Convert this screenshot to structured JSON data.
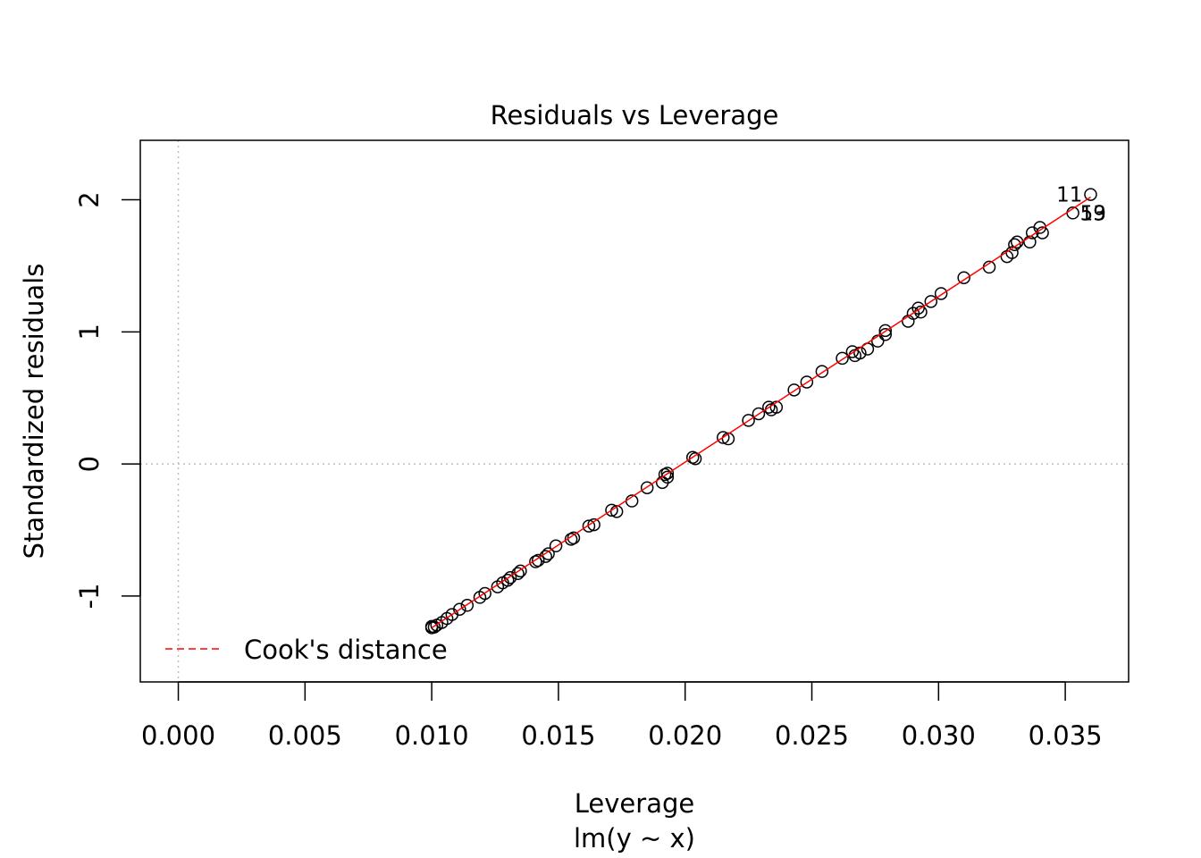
{
  "chart_data": {
    "type": "scatter",
    "title": "Residuals vs Leverage",
    "xlabel": "Leverage",
    "subtitle": "lm(y ~ x)",
    "ylabel": "Standardized residuals",
    "xlim": [
      -0.0015,
      0.0375
    ],
    "ylim": [
      -1.65,
      2.45
    ],
    "x_ticks": [
      {
        "value": 0.0,
        "label": "0.000"
      },
      {
        "value": 0.005,
        "label": "0.005"
      },
      {
        "value": 0.01,
        "label": "0.010"
      },
      {
        "value": 0.015,
        "label": "0.015"
      },
      {
        "value": 0.02,
        "label": "0.020"
      },
      {
        "value": 0.025,
        "label": "0.025"
      },
      {
        "value": 0.03,
        "label": "0.030"
      },
      {
        "value": 0.035,
        "label": "0.035"
      }
    ],
    "y_ticks": [
      {
        "value": -1,
        "label": "-1"
      },
      {
        "value": 0,
        "label": "0"
      },
      {
        "value": 1,
        "label": "1"
      },
      {
        "value": 2,
        "label": "2"
      }
    ],
    "reference_lines": {
      "x": 0,
      "y": 0,
      "color": "#bebebe"
    },
    "points": [
      [
        0.01,
        -1.24
      ],
      [
        0.01,
        -1.23
      ],
      [
        0.0101,
        -1.235
      ],
      [
        0.0102,
        -1.22
      ],
      [
        0.0104,
        -1.2
      ],
      [
        0.0106,
        -1.17
      ],
      [
        0.0108,
        -1.14
      ],
      [
        0.0111,
        -1.1
      ],
      [
        0.0114,
        -1.07
      ],
      [
        0.0119,
        -1.01
      ],
      [
        0.0121,
        -0.98
      ],
      [
        0.0126,
        -0.93
      ],
      [
        0.0128,
        -0.9
      ],
      [
        0.013,
        -0.88
      ],
      [
        0.0131,
        -0.86
      ],
      [
        0.0134,
        -0.83
      ],
      [
        0.0135,
        -0.81
      ],
      [
        0.0141,
        -0.74
      ],
      [
        0.0142,
        -0.73
      ],
      [
        0.0145,
        -0.7
      ],
      [
        0.0146,
        -0.68
      ],
      [
        0.0149,
        -0.62
      ],
      [
        0.0155,
        -0.57
      ],
      [
        0.0156,
        -0.56
      ],
      [
        0.0162,
        -0.47
      ],
      [
        0.0164,
        -0.46
      ],
      [
        0.0171,
        -0.35
      ],
      [
        0.0173,
        -0.36
      ],
      [
        0.0179,
        -0.28
      ],
      [
        0.0185,
        -0.18
      ],
      [
        0.0191,
        -0.14
      ],
      [
        0.0192,
        -0.08
      ],
      [
        0.0193,
        -0.1
      ],
      [
        0.0193,
        -0.07
      ],
      [
        0.0203,
        0.05
      ],
      [
        0.0204,
        0.04
      ],
      [
        0.0215,
        0.2
      ],
      [
        0.0217,
        0.19
      ],
      [
        0.0225,
        0.33
      ],
      [
        0.0229,
        0.38
      ],
      [
        0.0233,
        0.43
      ],
      [
        0.0234,
        0.41
      ],
      [
        0.0236,
        0.43
      ],
      [
        0.0243,
        0.56
      ],
      [
        0.0248,
        0.62
      ],
      [
        0.0254,
        0.7
      ],
      [
        0.0262,
        0.8
      ],
      [
        0.0266,
        0.85
      ],
      [
        0.0267,
        0.82
      ],
      [
        0.0269,
        0.84
      ],
      [
        0.0272,
        0.87
      ],
      [
        0.0276,
        0.93
      ],
      [
        0.0279,
        1.01
      ],
      [
        0.0279,
        0.98
      ],
      [
        0.0288,
        1.08
      ],
      [
        0.029,
        1.14
      ],
      [
        0.0292,
        1.18
      ],
      [
        0.0293,
        1.15
      ],
      [
        0.0297,
        1.23
      ],
      [
        0.0301,
        1.29
      ],
      [
        0.031,
        1.41
      ],
      [
        0.032,
        1.49
      ],
      [
        0.0327,
        1.57
      ],
      [
        0.0329,
        1.6
      ],
      [
        0.033,
        1.66
      ],
      [
        0.0331,
        1.68
      ],
      [
        0.0336,
        1.68
      ],
      [
        0.0337,
        1.75
      ],
      [
        0.034,
        1.79
      ],
      [
        0.0341,
        1.75
      ],
      [
        0.0353,
        1.9
      ],
      [
        0.036,
        2.04
      ]
    ],
    "point_labels": [
      {
        "label": "11",
        "x": 0.036,
        "y": 2.04
      },
      {
        "label": "59",
        "x": 0.0353,
        "y": 1.9
      },
      {
        "label": "13",
        "x": 0.0353,
        "y": 1.9
      }
    ],
    "fit_line": {
      "x": [
        0.01,
        0.036
      ],
      "y": [
        -1.24,
        2.02
      ],
      "color": "#ff0000"
    },
    "legend": {
      "label": "Cook's distance",
      "color": "#ff0000",
      "style": "dashed",
      "position": "bottom-left"
    },
    "grid": false
  }
}
